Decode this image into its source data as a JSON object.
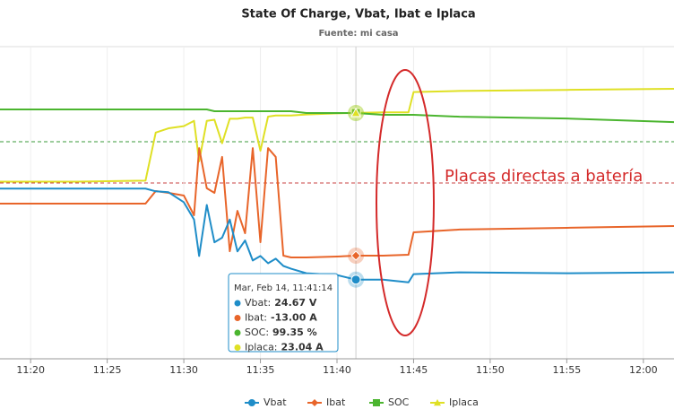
{
  "chart_data": {
    "type": "line",
    "title": "State Of Charge, Vbat, Ibat e Iplaca",
    "subtitle": "Fuente: mi casa",
    "x": [
      "11:18:00",
      "11:23:00",
      "11:27:30",
      "11:28:10",
      "11:29:00",
      "11:30:00",
      "11:30:40",
      "11:31:00",
      "11:31:30",
      "11:32:00",
      "11:32:30",
      "11:33:00",
      "11:33:30",
      "11:34:00",
      "11:34:30",
      "11:35:00",
      "11:35:30",
      "11:36:00",
      "11:36:30",
      "11:37:00",
      "11:38:00",
      "11:40:00",
      "11:41:14",
      "11:43:00",
      "11:44:40",
      "11:45:00",
      "11:48:00",
      "11:55:00",
      "12:02:00"
    ],
    "xlim": [
      "11:18:00",
      "12:02:00"
    ],
    "xticks": [
      "11:20",
      "11:25",
      "11:30",
      "11:35",
      "11:40",
      "11:45",
      "11:50",
      "11:55",
      "12:00"
    ],
    "series": [
      {
        "name": "Vbat",
        "color": "#1f8dc8",
        "marker": "circle",
        "ylim": [
          23.8,
          27.2
        ],
        "values": [
          25.67,
          25.67,
          25.67,
          25.64,
          25.63,
          25.52,
          25.33,
          24.93,
          25.49,
          25.08,
          25.13,
          25.33,
          24.98,
          25.1,
          24.88,
          24.93,
          24.85,
          24.9,
          24.82,
          24.79,
          24.74,
          24.72,
          24.67,
          24.67,
          24.64,
          24.73,
          24.75,
          24.74,
          24.75
        ]
      },
      {
        "name": "Ibat",
        "color": "#e8652a",
        "marker": "diamond",
        "ylim": [
          -20,
          1
        ],
        "values": [
          -9.47,
          -9.47,
          -9.47,
          -8.62,
          -8.74,
          -8.92,
          -10.26,
          -5.7,
          -8.43,
          -8.74,
          -6.3,
          -12.7,
          -9.96,
          -11.48,
          -5.7,
          -12.09,
          -5.7,
          -6.3,
          -13.0,
          -13.12,
          -13.12,
          -13.06,
          -13.0,
          -13.0,
          -12.94,
          -11.42,
          -11.23,
          -11.11,
          -10.99
        ]
      },
      {
        "name": "SOC",
        "color": "#4bb52f",
        "marker": "square",
        "ylim": [
          98,
          99.7
        ],
        "values": [
          99.37,
          99.37,
          99.37,
          99.37,
          99.37,
          99.37,
          99.37,
          99.37,
          99.37,
          99.36,
          99.36,
          99.36,
          99.36,
          99.36,
          99.36,
          99.36,
          99.36,
          99.36,
          99.36,
          99.36,
          99.35,
          99.35,
          99.35,
          99.34,
          99.34,
          99.34,
          99.33,
          99.32,
          99.3
        ]
      },
      {
        "name": "Iplaca",
        "color": "#dfe024",
        "marker": "triangle",
        "ylim": [
          0,
          29
        ],
        "values": [
          16.6,
          16.6,
          16.7,
          21.2,
          21.6,
          21.8,
          22.3,
          18.5,
          22.3,
          22.4,
          20.2,
          22.5,
          22.5,
          22.6,
          22.6,
          19.5,
          22.7,
          22.8,
          22.8,
          22.8,
          22.9,
          23.0,
          23.04,
          23.1,
          23.1,
          25.0,
          25.1,
          25.2,
          25.3
        ]
      }
    ],
    "annotation": "Placas directas a batería",
    "tooltip": {
      "header": "Mar, Feb 14, 11:41:14",
      "rows": [
        {
          "label": "Vbat:",
          "value": "24.67 V"
        },
        {
          "label": "Ibat:",
          "value": "-13.00 A"
        },
        {
          "label": "SOC:",
          "value": "99.35 %"
        },
        {
          "label": "Iplaca:",
          "value": "23.04 A"
        }
      ]
    },
    "grid": true,
    "legend": "bottom"
  }
}
